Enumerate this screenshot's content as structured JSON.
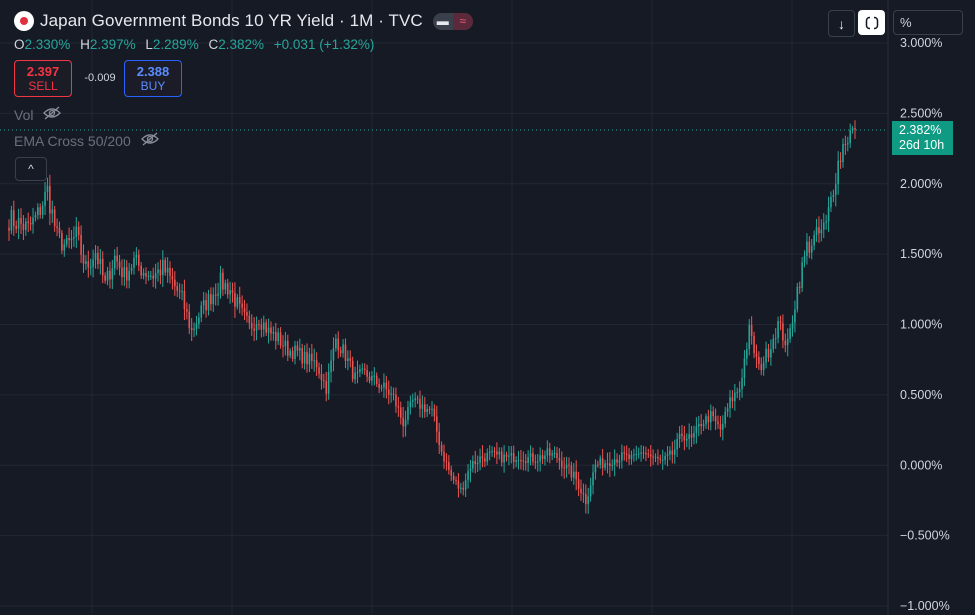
{
  "header": {
    "title": "Japan Government Bonds 10 YR Yield · 1M · TVC",
    "ohlc": {
      "o_label": "O",
      "o": "2.330%",
      "h_label": "H",
      "h": "2.397%",
      "l_label": "L",
      "l": "2.289%",
      "c_label": "C",
      "c": "2.382%",
      "change": "+0.031 (+1.32%)"
    },
    "sell": {
      "price": "2.397",
      "label": "SELL"
    },
    "spread": "-0.009",
    "buy": {
      "price": "2.388",
      "label": "BUY"
    },
    "indicators": [
      "Vol",
      "EMA Cross 50/200"
    ],
    "collapse_icon": "chevron-up-icon"
  },
  "toolbar": {
    "download_icon": "arrow-down-icon",
    "reset_icon": "reset-scale-icon",
    "scale_label": "%"
  },
  "last_price": {
    "value": "2.382%",
    "countdown": "26d 10h"
  },
  "colors": {
    "up": "#26a69a",
    "down": "#ef5350",
    "background": "#161a25",
    "grid": "#232734",
    "tag": "#0f9b83"
  },
  "chart_data": {
    "type": "candlestick",
    "title": "Japan Government Bonds 10 YR Yield · 1M · TVC",
    "interval": "1M",
    "y_axis": {
      "side": "right",
      "range": [
        -1.0,
        3.1
      ],
      "ticks": [
        "3.000%",
        "2.500%",
        "2.000%",
        "1.500%",
        "1.000%",
        "0.500%",
        "0.000%",
        "−0.500%",
        "−1.000%"
      ],
      "tick_values": [
        3.0,
        2.5,
        2.0,
        1.5,
        1.0,
        0.5,
        0.0,
        -0.5,
        -1.0
      ]
    },
    "grid": true,
    "approx_close_series": [
      1.75,
      1.72,
      1.68,
      1.78,
      1.95,
      1.62,
      1.55,
      1.63,
      1.4,
      1.52,
      1.28,
      1.48,
      1.35,
      1.45,
      1.38,
      1.35,
      1.4,
      1.3,
      1.18,
      0.95,
      1.1,
      1.2,
      1.3,
      1.25,
      1.1,
      0.98,
      1.05,
      0.95,
      0.9,
      0.82,
      0.8,
      0.75,
      0.72,
      0.55,
      0.9,
      0.78,
      0.62,
      0.65,
      0.6,
      0.55,
      0.48,
      0.3,
      0.45,
      0.42,
      0.38,
      0.1,
      -0.08,
      -0.18,
      0.0,
      0.05,
      0.07,
      0.06,
      0.05,
      0.07,
      0.05,
      0.05,
      0.08,
      0.06,
      -0.02,
      -0.1,
      -0.25,
      0.0,
      0.02,
      0.05,
      0.06,
      0.04,
      0.1,
      0.05,
      0.02,
      0.08,
      0.22,
      0.18,
      0.3,
      0.35,
      0.25,
      0.45,
      0.55,
      0.95,
      0.68,
      0.82,
      1.0,
      0.85,
      1.25,
      1.55,
      1.62,
      1.7,
      2.08,
      2.33,
      2.382
    ],
    "last": 2.382
  }
}
